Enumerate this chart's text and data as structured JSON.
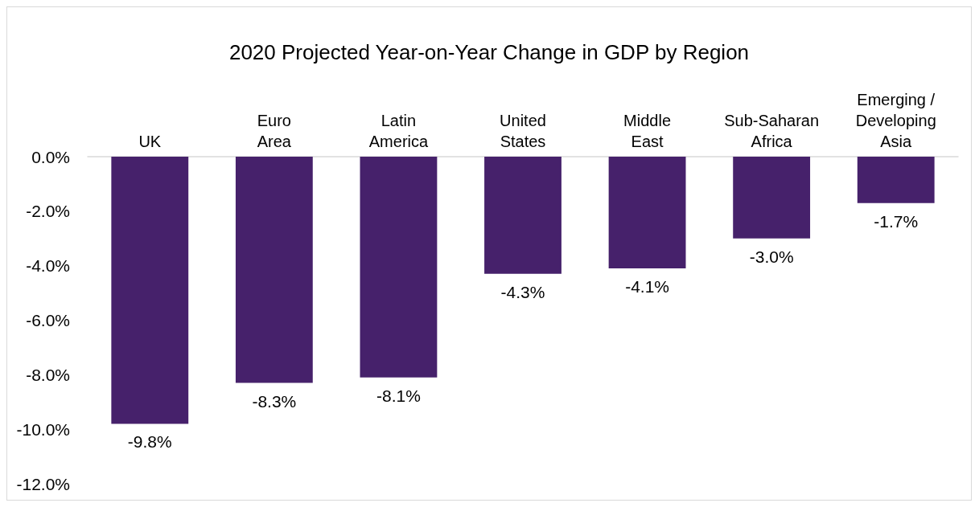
{
  "chart_data": {
    "type": "bar",
    "title": "2020 Projected Year-on-Year Change in GDP by Region",
    "categories": [
      "UK",
      "Euro\nArea",
      "Latin\nAmerica",
      "United\nStates",
      "Middle\nEast",
      "Sub-Saharan\nAfrica",
      "Emerging /\nDeveloping\nAsia"
    ],
    "values": [
      -9.8,
      -8.3,
      -8.1,
      -4.3,
      -4.1,
      -3.0,
      -1.7
    ],
    "value_labels": [
      "-9.8%",
      "-8.3%",
      "-8.1%",
      "-4.3%",
      "-4.1%",
      "-3.0%",
      "-1.7%"
    ],
    "color": "#46216b",
    "ylim": [
      -12,
      0
    ],
    "yticks": [
      {
        "value": 0,
        "label": "0.0%"
      },
      {
        "value": -2,
        "label": "-2.0%"
      },
      {
        "value": -4,
        "label": "-4.0%"
      },
      {
        "value": -6,
        "label": "-6.0%"
      },
      {
        "value": -8,
        "label": "-8.0%"
      },
      {
        "value": -10,
        "label": "-10.0%"
      },
      {
        "value": -12,
        "label": "-12.0%"
      }
    ],
    "grid": false
  }
}
